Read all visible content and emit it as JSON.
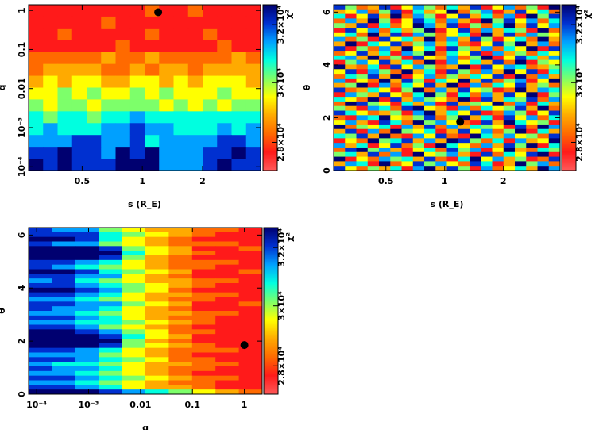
{
  "chart_data": [
    {
      "type": "heatmap",
      "xlabel": "s (R_E)",
      "ylabel": "q",
      "xscale": "log",
      "yscale": "log",
      "xlim": [
        0.27,
        3.9
      ],
      "ylim": [
        8e-05,
        1.4
      ],
      "xticks": [
        {
          "v": 0.5,
          "label": "0.5"
        },
        {
          "v": 1,
          "label": "1"
        },
        {
          "v": 2,
          "label": "2"
        }
      ],
      "yticks": [
        {
          "v": 1,
          "label": "1"
        },
        {
          "v": 0.1,
          "label": "0.1"
        },
        {
          "v": 0.01,
          "label": "0.01"
        },
        {
          "v": 0.001,
          "label": "10⁻³"
        },
        {
          "v": 0.0001,
          "label": "10⁻⁴"
        }
      ],
      "marker": {
        "x": 1.2,
        "y": 0.9
      },
      "z_levels": "digit 0 (low χ², ~2.7e4) to 9 (high χ², ~3.3e4)",
      "z_rows_top_to_bottom": [
        "1111111121121111",
        "1111121111111111",
        "1121111121112111",
        "1111112111111211",
        "2222232232222232",
        "2333322323323333",
        "3434433443434443",
        "4454544545444544",
        "5455455554545455",
        "6566566766666666",
        "6766677877666767",
        "7778877867777887",
        "8898879897778898",
        "9898889997778988"
      ]
    },
    {
      "type": "heatmap",
      "xlabel": "s (R_E)",
      "ylabel": "θ",
      "xscale": "log",
      "yscale": "linear",
      "xlim": [
        0.27,
        3.9
      ],
      "ylim": [
        0,
        6.28
      ],
      "xticks": [
        {
          "v": 0.5,
          "label": "0.5"
        },
        {
          "v": 1,
          "label": "1"
        },
        {
          "v": 2,
          "label": "2"
        }
      ],
      "yticks": [
        {
          "v": 0,
          "label": "0"
        },
        {
          "v": 2,
          "label": "2"
        },
        {
          "v": 4,
          "label": "4"
        },
        {
          "v": 6,
          "label": "6"
        }
      ],
      "marker": {
        "x": 1.2,
        "y": 1.85
      },
      "z_rows_top_to_bottom": [
        "85238147526381472519",
        "34725816349257138462",
        "61483927514836271958",
        "27395148627319584726",
        "53816249738152693847",
        "18472635914827365192",
        "46293817524619382754",
        "72518463927385146293",
        "39164825736214859372",
        "81527394618537264918",
        "24836175926481735264",
        "67392518437259148637",
        "15748362917463829154",
        "93261847523918476235",
        "48175293618527394816",
        "26583914725364819273",
        "71429385164938257149",
        "35917264839172648352",
        "82364159273845129376",
        "17538426951627384915",
        "64291837542918365827",
        "29854163718354927163",
        "53176289431726458392",
        "86423517936481275148",
        "21769435825936184726",
        "47318629574218396451",
        "92546173827365418297",
        "38172954613847259163",
        "65839217482196374528",
        "14295683739852617349",
        "73614825196427385916",
        "28957314628571493265",
        "56382719457318264891",
        "91427563821694735128",
        "37619248574286139572",
        "84253617938517246397"
      ]
    },
    {
      "type": "heatmap",
      "xlabel": "q",
      "ylabel": "θ",
      "xscale": "log",
      "yscale": "linear",
      "xlim": [
        7e-05,
        2.2
      ],
      "ylim": [
        0,
        6.28
      ],
      "xticks": [
        {
          "v": 0.0001,
          "label": "10⁻⁴"
        },
        {
          "v": 0.001,
          "label": "10⁻³"
        },
        {
          "v": 0.01,
          "label": "0.01"
        },
        {
          "v": 0.1,
          "label": "0.1"
        },
        {
          "v": 1,
          "label": "1"
        }
      ],
      "yticks": [
        {
          "v": 0,
          "label": "0"
        },
        {
          "v": 2,
          "label": "2"
        },
        {
          "v": 4,
          "label": "4"
        },
        {
          "v": 6,
          "label": "6"
        }
      ],
      "marker": {
        "x": 1.0,
        "y": 1.85
      },
      "z_rows_top_to_bottom": [
        "8775433221",
        "8886543211",
        "9986432111",
        "8775432221",
        "9998543112",
        "9999643211",
        "9998532111",
        "8876432221",
        "8765432211",
        "9986543112",
        "8877432111",
        "7865433221",
        "8876543211",
        "9987542111",
        "8876433221",
        "7765432211",
        "8877543112",
        "8776432111",
        "7765433221",
        "8876432211",
        "7766543211",
        "8875432111",
        "9987542211",
        "9998643111",
        "9999532111",
        "9998543211",
        "8876432221",
        "7775432111",
        "8876542211",
        "7665433221",
        "8776432211",
        "7765432111",
        "8876543221",
        "7765432211",
        "8876433211",
        "9998765432"
      ]
    }
  ],
  "colorbar": {
    "label": "χ²",
    "ticks": [
      "2.8×10⁴",
      "3×10⁴",
      "3.2×10⁴"
    ],
    "colors": [
      "#ff5a5a",
      "#ff1a1a",
      "#ff6a00",
      "#ffaa00",
      "#ffff00",
      "#7dff6a",
      "#00ffe0",
      "#00a0ff",
      "#0030d0",
      "#000070"
    ]
  }
}
